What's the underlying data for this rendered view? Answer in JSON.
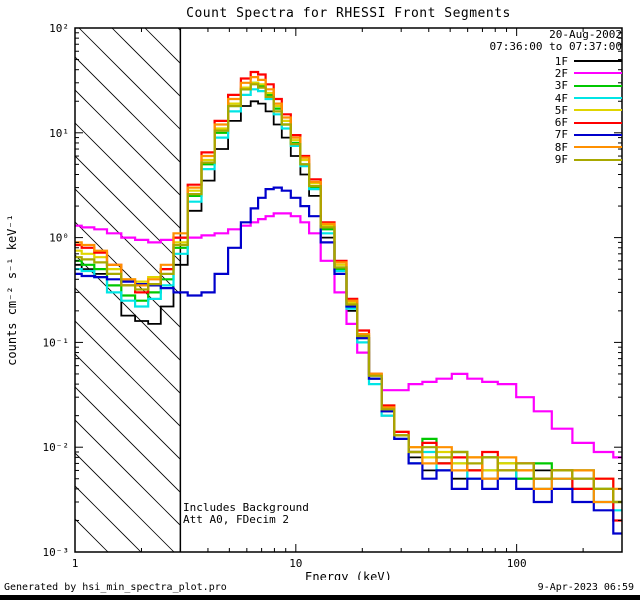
{
  "title": "Count Spectra for RHESSI Front Segments",
  "legend": {
    "date": "20-Aug-2002",
    "time": "07:36:00 to 07:37:00"
  },
  "annotations": {
    "background": "Includes Background",
    "attenuator": "Att A0, FDecim 2"
  },
  "footer": {
    "left": "Generated by hsi_min_spectra_plot.pro",
    "right": "9-Apr-2023 06:59"
  },
  "chart_data": {
    "type": "line",
    "mode": "histogram-step",
    "title": "Count Spectra for RHESSI Front Segments",
    "xlabel": "Energy (keV)",
    "ylabel": "counts cm⁻² s⁻¹ keV⁻¹",
    "xscale": "log",
    "yscale": "log",
    "xlim": [
      1,
      300
    ],
    "ylim": [
      0.001,
      100
    ],
    "legend_position": "top-right",
    "hatch_region_kev": [
      1,
      3
    ],
    "frame_color": "#000000",
    "x_ticks": [
      {
        "v": 1,
        "label": "1"
      },
      {
        "v": 10,
        "label": "10"
      },
      {
        "v": 100,
        "label": "100"
      }
    ],
    "y_ticks": [
      {
        "v": 100,
        "label": "10²"
      },
      {
        "v": 10,
        "label": "10¹"
      },
      {
        "v": 1,
        "label": "10⁰"
      },
      {
        "v": 0.1,
        "label": "10⁻¹"
      },
      {
        "v": 0.01,
        "label": "10⁻²"
      },
      {
        "v": 0.001,
        "label": "10⁻³"
      }
    ],
    "x": [
      1.0,
      1.15,
      1.3,
      1.5,
      1.75,
      2.0,
      2.3,
      2.6,
      3.0,
      3.5,
      4.0,
      4.6,
      5.3,
      6.0,
      6.5,
      7.0,
      7.6,
      8.3,
      9.0,
      10,
      11,
      12,
      14,
      16,
      18,
      20,
      23,
      26,
      30,
      35,
      40,
      47,
      55,
      65,
      75,
      90,
      110,
      130,
      160,
      200,
      250,
      300
    ],
    "series": [
      {
        "name": "1F",
        "color": "#000000",
        "values": [
          0.55,
          0.5,
          0.45,
          0.3,
          0.18,
          0.16,
          0.15,
          0.22,
          0.55,
          1.8,
          3.5,
          7,
          13,
          18,
          20,
          19,
          16,
          12,
          9,
          6,
          4,
          2.5,
          1.0,
          0.45,
          0.2,
          0.1,
          0.04,
          0.02,
          0.012,
          0.008,
          0.006,
          0.007,
          0.005,
          0.006,
          0.005,
          0.006,
          0.005,
          0.006,
          0.004,
          0.005,
          0.003,
          0.002
        ]
      },
      {
        "name": "2F",
        "color": "#ff00ff",
        "values": [
          1.3,
          1.25,
          1.2,
          1.1,
          1.0,
          0.95,
          0.9,
          0.95,
          1.0,
          1.0,
          1.05,
          1.1,
          1.2,
          1.3,
          1.4,
          1.5,
          1.6,
          1.7,
          1.7,
          1.6,
          1.4,
          1.1,
          0.6,
          0.3,
          0.15,
          0.08,
          0.045,
          0.035,
          0.035,
          0.04,
          0.042,
          0.045,
          0.05,
          0.045,
          0.042,
          0.04,
          0.03,
          0.022,
          0.015,
          0.011,
          0.009,
          0.008
        ]
      },
      {
        "name": "3F",
        "color": "#00c800",
        "values": [
          0.6,
          0.55,
          0.5,
          0.35,
          0.28,
          0.25,
          0.3,
          0.4,
          0.8,
          2.5,
          5.0,
          10,
          18,
          26,
          30,
          28,
          23,
          17,
          12,
          8,
          5,
          3,
          1.2,
          0.5,
          0.22,
          0.11,
          0.045,
          0.022,
          0.013,
          0.009,
          0.012,
          0.007,
          0.009,
          0.006,
          0.008,
          0.007,
          0.005,
          0.007,
          0.005,
          0.006,
          0.004,
          0.003
        ]
      },
      {
        "name": "4F",
        "color": "#00e5e5",
        "values": [
          0.5,
          0.48,
          0.42,
          0.3,
          0.25,
          0.22,
          0.26,
          0.35,
          0.7,
          2.2,
          4.5,
          9,
          16,
          23,
          26,
          25,
          21,
          15,
          11,
          7.5,
          4.8,
          2.9,
          1.1,
          0.48,
          0.21,
          0.1,
          0.04,
          0.02,
          0.012,
          0.007,
          0.009,
          0.006,
          0.007,
          0.005,
          0.006,
          0.005,
          0.006,
          0.004,
          0.005,
          0.004,
          0.003,
          0.0025
        ]
      },
      {
        "name": "5F",
        "color": "#e0d500",
        "values": [
          0.75,
          0.7,
          0.65,
          0.5,
          0.4,
          0.38,
          0.42,
          0.5,
          0.9,
          2.8,
          5.5,
          11,
          19,
          27,
          30,
          29,
          24,
          18,
          13,
          8.5,
          5.5,
          3.3,
          1.3,
          0.55,
          0.24,
          0.12,
          0.05,
          0.025,
          0.014,
          0.01,
          0.008,
          0.009,
          0.007,
          0.008,
          0.006,
          0.007,
          0.006,
          0.005,
          0.006,
          0.004,
          0.005,
          0.003
        ]
      },
      {
        "name": "6F",
        "color": "#ff0000",
        "values": [
          0.85,
          0.8,
          0.72,
          0.55,
          0.35,
          0.3,
          0.35,
          0.5,
          1.0,
          3.2,
          6.5,
          13,
          23,
          33,
          38,
          36,
          29,
          21,
          15,
          9.5,
          6.0,
          3.6,
          1.4,
          0.6,
          0.26,
          0.13,
          0.05,
          0.025,
          0.014,
          0.009,
          0.011,
          0.007,
          0.008,
          0.006,
          0.009,
          0.006,
          0.007,
          0.005,
          0.006,
          0.004,
          0.005,
          0.002
        ]
      },
      {
        "name": "7F",
        "color": "#0000cc",
        "values": [
          0.45,
          0.43,
          0.42,
          0.4,
          0.38,
          0.36,
          0.35,
          0.33,
          0.3,
          0.28,
          0.3,
          0.45,
          0.8,
          1.4,
          1.9,
          2.4,
          2.9,
          3.0,
          2.8,
          2.4,
          2.0,
          1.6,
          0.9,
          0.45,
          0.22,
          0.11,
          0.045,
          0.022,
          0.012,
          0.007,
          0.005,
          0.006,
          0.004,
          0.005,
          0.004,
          0.005,
          0.004,
          0.003,
          0.004,
          0.003,
          0.0025,
          0.0015
        ]
      },
      {
        "name": "8F",
        "color": "#ff9000",
        "values": [
          0.9,
          0.85,
          0.75,
          0.55,
          0.4,
          0.35,
          0.4,
          0.55,
          1.1,
          3.0,
          6.0,
          12,
          21,
          30,
          34,
          32,
          26,
          19,
          14,
          9.0,
          5.8,
          3.4,
          1.35,
          0.58,
          0.25,
          0.12,
          0.05,
          0.024,
          0.013,
          0.01,
          0.007,
          0.01,
          0.006,
          0.008,
          0.005,
          0.008,
          0.006,
          0.004,
          0.005,
          0.006,
          0.003,
          0.004
        ]
      },
      {
        "name": "9F",
        "color": "#a8a800",
        "values": [
          0.65,
          0.62,
          0.58,
          0.45,
          0.35,
          0.32,
          0.36,
          0.45,
          0.85,
          2.6,
          5.2,
          10.5,
          18,
          26,
          29,
          27,
          22,
          16,
          12,
          7.8,
          5.0,
          3.1,
          1.25,
          0.52,
          0.23,
          0.115,
          0.048,
          0.023,
          0.013,
          0.009,
          0.01,
          0.008,
          0.009,
          0.007,
          0.008,
          0.006,
          0.007,
          0.005,
          0.006,
          0.005,
          0.004,
          0.003
        ]
      }
    ]
  }
}
